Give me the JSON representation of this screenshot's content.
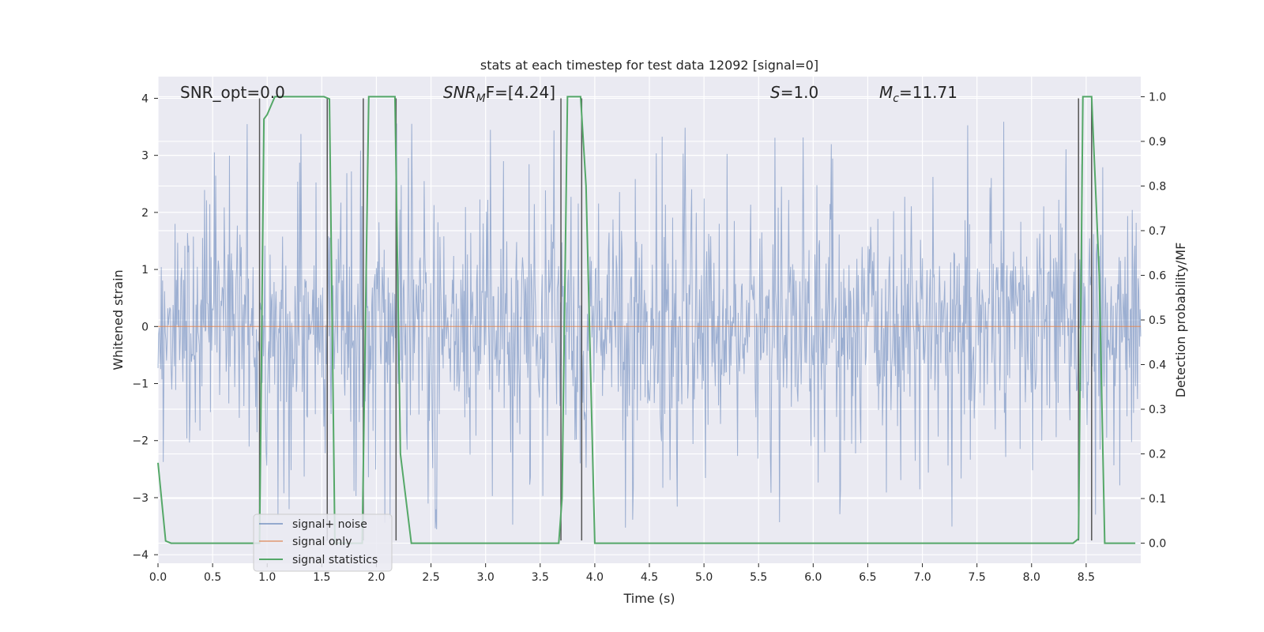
{
  "chart_data": {
    "type": "line",
    "title": "stats at each timestep for test data 12092 [signal=0]",
    "xlabel": "Time (s)",
    "ylabel": "Whitened strain",
    "y2label": "Detection probability/MF",
    "xlim": [
      0,
      9
    ],
    "ylim": [
      -4.15,
      4.38
    ],
    "y2lim": [
      -0.045,
      1.045
    ],
    "x_ticks": [
      0.0,
      0.5,
      1.0,
      1.5,
      2.0,
      2.5,
      3.0,
      3.5,
      4.0,
      4.5,
      5.0,
      5.5,
      6.0,
      6.5,
      7.0,
      7.5,
      8.0,
      8.5
    ],
    "x_tick_labels": [
      "0.0",
      "0.5",
      "1.0",
      "1.5",
      "2.0",
      "2.5",
      "3.0",
      "3.5",
      "4.0",
      "4.5",
      "5.0",
      "5.5",
      "6.0",
      "6.5",
      "7.0",
      "7.5",
      "8.0",
      "8.5"
    ],
    "y_ticks": [
      -4,
      -3,
      -2,
      -1,
      0,
      1,
      2,
      3,
      4
    ],
    "y_tick_labels": [
      "−4",
      "−3",
      "−2",
      "−1",
      "0",
      "1",
      "2",
      "3",
      "4"
    ],
    "y2_ticks": [
      0.0,
      0.1,
      0.2,
      0.3,
      0.4,
      0.5,
      0.6,
      0.7,
      0.8,
      0.9,
      1.0
    ],
    "y2_tick_labels": [
      "0.0",
      "0.1",
      "0.2",
      "0.3",
      "0.4",
      "0.5",
      "0.6",
      "0.7",
      "0.8",
      "0.9",
      "1.0"
    ],
    "grid": true,
    "legend_position": "lower-left",
    "annotations": {
      "snr_opt": "SNR_opt=0.0",
      "snr_mf": "SNR",
      "snr_mf_sub": "M",
      "snr_mf_rest": "F=[4.24]",
      "s_label": "S",
      "s_rest": "=1.0",
      "mc_label": "M",
      "mc_sub": "c",
      "mc_rest": "=11.71"
    },
    "series": [
      {
        "name": "signal+ noise",
        "color": "#4c72b0",
        "description_values": "dense noise, about ±1.5 typical, peaks from -3.8 to 3.7",
        "x_range": [
          0,
          9
        ],
        "typical_amplitude": 1.5,
        "peak_max": 3.7,
        "peak_min": -3.8
      },
      {
        "name": "signal only",
        "color": "#dd8452",
        "x": [
          0,
          9
        ],
        "values": [
          0,
          0
        ]
      },
      {
        "name": "signal statistics",
        "color": "#55a868",
        "axis": "right",
        "x": [
          0.0,
          0.07,
          0.12,
          0.93,
          0.97,
          1.0,
          1.07,
          1.52,
          1.57,
          1.62,
          1.87,
          1.93,
          2.17,
          2.22,
          2.27,
          2.32,
          3.67,
          3.7,
          3.75,
          3.87,
          3.92,
          4.0,
          8.38,
          8.43,
          8.47,
          8.55,
          8.62,
          8.67,
          8.95
        ],
        "values": [
          0.18,
          0.005,
          0.0,
          0.0,
          0.95,
          0.96,
          1.0,
          1.0,
          0.995,
          0.0,
          0.0,
          1.0,
          1.0,
          0.2,
          0.1,
          0.0,
          0.0,
          0.1,
          1.0,
          1.0,
          0.8,
          0.0,
          0.0,
          0.01,
          1.0,
          1.0,
          0.6,
          0.0,
          0.0
        ]
      }
    ],
    "vertical_markers": [
      0.93,
      1.55,
      1.88,
      2.18,
      3.69,
      3.88,
      8.43,
      8.55
    ],
    "marker_color": "#555555",
    "colors": {
      "background": "#eaeaf2",
      "grid": "#ffffff",
      "text": "#262626"
    }
  }
}
